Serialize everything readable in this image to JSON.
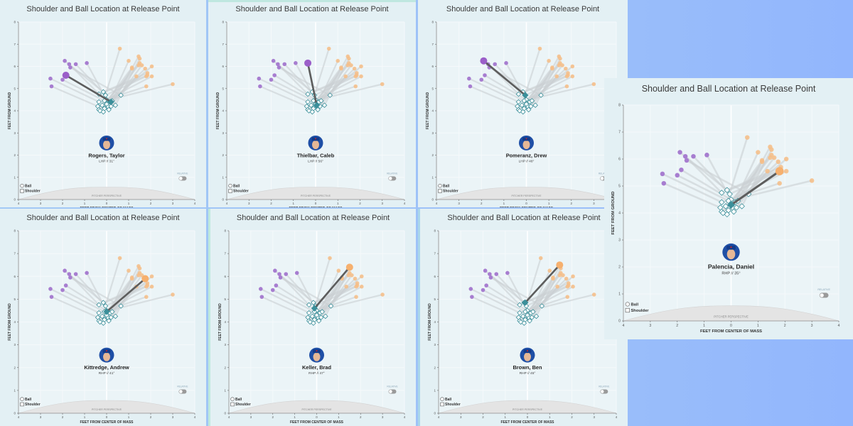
{
  "colors": {
    "ball_left": "#a77dd0",
    "ball_right": "#f6bd86",
    "shoulder": "#3b8f9a",
    "shoulder_fill": "#ffffff",
    "line_bg": "#c9cfd2",
    "line_highlight": "#5d5d5d",
    "plot_bg": "#ebf4f7",
    "panel_bg": "#e3f0f4",
    "mound": "#e4e4e4"
  },
  "common": {
    "title": "Shoulder and Ball Location at Release Point",
    "xlabel": "FEET FROM CENTER OF MASS",
    "ylabel": "FEET FROM GROUND",
    "legend": [
      "Ball",
      "Shoulder"
    ],
    "toggle_label": "RELATIVE",
    "mound_label": "PITCHER PERSPECTIVE",
    "x_ticks": [
      "4",
      "3",
      "2",
      "1",
      "0",
      "1",
      "2",
      "3",
      "4"
    ],
    "y_ticks": [
      "0",
      "1",
      "2",
      "3",
      "4",
      "5",
      "6",
      "7",
      "8"
    ]
  },
  "chart_data": {
    "type": "scatter",
    "title": "Shoulder and Ball Location at Release Point",
    "xlabel": "FEET FROM CENTER OF MASS",
    "ylabel": "FEET FROM GROUND",
    "xlim": [
      -4,
      4
    ],
    "ylim": [
      0,
      8
    ],
    "grid": true,
    "legend": [
      "Ball",
      "Shoulder"
    ],
    "legend_position": "bottom-left",
    "balls_left": [
      {
        "x": -1.9,
        "y": 6.25
      },
      {
        "x": -1.7,
        "y": 6.1
      },
      {
        "x": -1.4,
        "y": 6.1
      },
      {
        "x": -0.9,
        "y": 6.15
      },
      {
        "x": -1.65,
        "y": 5.95
      },
      {
        "x": -2.55,
        "y": 5.45
      },
      {
        "x": -2.0,
        "y": 5.4
      },
      {
        "x": -1.85,
        "y": 5.6
      },
      {
        "x": -2.5,
        "y": 5.1
      }
    ],
    "balls_right": [
      {
        "x": 0.6,
        "y": 6.8
      },
      {
        "x": 1.0,
        "y": 6.25
      },
      {
        "x": 1.45,
        "y": 6.45
      },
      {
        "x": 1.5,
        "y": 6.35
      },
      {
        "x": 1.5,
        "y": 6.15
      },
      {
        "x": 1.45,
        "y": 6.05
      },
      {
        "x": 1.6,
        "y": 6.05
      },
      {
        "x": 1.15,
        "y": 5.95
      },
      {
        "x": 1.15,
        "y": 5.9
      },
      {
        "x": 2.05,
        "y": 6.0
      },
      {
        "x": 1.75,
        "y": 5.9
      },
      {
        "x": 1.85,
        "y": 5.7
      },
      {
        "x": 1.85,
        "y": 5.6
      },
      {
        "x": 1.8,
        "y": 5.55
      },
      {
        "x": 2.05,
        "y": 5.55
      },
      {
        "x": 1.35,
        "y": 5.55
      },
      {
        "x": 1.8,
        "y": 5.1
      },
      {
        "x": 3.0,
        "y": 5.2
      }
    ],
    "shoulders": [
      {
        "x": -0.15,
        "y": 4.85
      },
      {
        "x": -0.35,
        "y": 4.75
      },
      {
        "x": -0.05,
        "y": 4.7
      },
      {
        "x": 0.0,
        "y": 4.5
      },
      {
        "x": 0.65,
        "y": 4.7
      },
      {
        "x": -0.35,
        "y": 4.4
      },
      {
        "x": -0.1,
        "y": 4.45
      },
      {
        "x": 0.15,
        "y": 4.4
      },
      {
        "x": -0.4,
        "y": 4.2
      },
      {
        "x": -0.2,
        "y": 4.25
      },
      {
        "x": 0.05,
        "y": 4.2
      },
      {
        "x": 0.2,
        "y": 4.2
      },
      {
        "x": 0.4,
        "y": 4.25
      },
      {
        "x": -0.35,
        "y": 4.05
      },
      {
        "x": -0.1,
        "y": 4.1
      },
      {
        "x": 0.1,
        "y": 4.05
      },
      {
        "x": -0.3,
        "y": 4.0
      },
      {
        "x": -0.15,
        "y": 3.95
      },
      {
        "x": 0.0,
        "y": 4.3
      },
      {
        "x": 0.25,
        "y": 4.45
      }
    ],
    "panels": [
      {
        "player": "Rogers, Taylor",
        "info": "LHP // 31°",
        "highlight": {
          "ball": {
            "x": -1.85,
            "y": 5.6
          },
          "shoulder": {
            "x": 0.2,
            "y": 4.4
          },
          "side": "left"
        }
      },
      {
        "player": "Thielbar, Caleb",
        "info": "LHP // 56°",
        "highlight": {
          "ball": {
            "x": -0.35,
            "y": 6.15
          },
          "shoulder": {
            "x": 0.05,
            "y": 4.25
          },
          "side": "left"
        }
      },
      {
        "player": "Pomeranz, Drew",
        "info": "LHP // 48°",
        "highlight": {
          "ball": {
            "x": -1.9,
            "y": 6.25
          },
          "shoulder": {
            "x": -0.05,
            "y": 4.7
          },
          "side": "left"
        }
      },
      {
        "player": "Kittredge, Andrew",
        "info": "RHP // 41°",
        "highlight": {
          "ball": {
            "x": 1.75,
            "y": 5.9
          },
          "shoulder": {
            "x": 0.0,
            "y": 4.45
          },
          "side": "right"
        }
      },
      {
        "player": "Keller, Brad",
        "info": "RHP // 47°",
        "highlight": {
          "ball": {
            "x": 1.5,
            "y": 6.4
          },
          "shoulder": {
            "x": -0.1,
            "y": 4.6
          },
          "side": "right"
        }
      },
      {
        "player": "Brown, Ben",
        "info": "RHP // 45°",
        "highlight": {
          "ball": {
            "x": 1.45,
            "y": 6.5
          },
          "shoulder": {
            "x": -0.1,
            "y": 4.85
          },
          "side": "right"
        }
      },
      {
        "player": "Palencia, Daniel",
        "info": "RHP // 35°",
        "highlight": {
          "ball": {
            "x": 1.8,
            "y": 5.55
          },
          "shoulder": {
            "x": 0.0,
            "y": 4.3
          },
          "side": "right"
        }
      }
    ]
  }
}
